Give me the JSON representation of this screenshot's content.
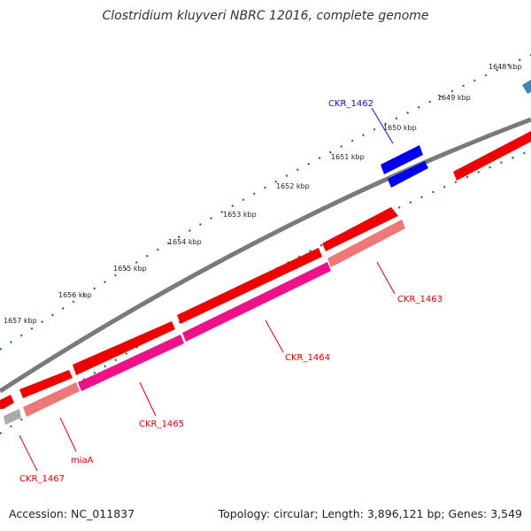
{
  "title": "Clostridium kluyveri NBRC 12016, complete genome",
  "footer": {
    "accession": "Accession: NC_011837",
    "summary": "Topology: circular; Length: 3,896,121 bp; Genes: 3,549"
  },
  "kbp_labels": [
    "1648 kbp",
    "1649 kbp",
    "1650 kbp",
    "1651 kbp",
    "1652 kbp",
    "1653 kbp",
    "1654 kbp",
    "1655 kbp",
    "1656 kbp",
    "1657 kbp"
  ],
  "genes": [
    {
      "label": "CKR_1462",
      "color": "#1111cc"
    },
    {
      "label": "CKR_1463",
      "color": "#dd0000"
    },
    {
      "label": "CKR_1464",
      "color": "#dd0000"
    },
    {
      "label": "CKR_1465",
      "color": "#dd0000"
    },
    {
      "label": "miaA",
      "color": "#dd0000"
    },
    {
      "label": "CKR_1467",
      "color": "#dd0000"
    }
  ],
  "colors": {
    "backbone": "#7a7a7a",
    "tick": "#1a7a1a",
    "forward_gene": "#ee0000",
    "pink_gene": "#ee1188",
    "salmon_gene": "#ee7777",
    "blue_gene": "#0000ee",
    "steel_gene": "#4682b4",
    "grey_gene": "#aaaaaa"
  }
}
